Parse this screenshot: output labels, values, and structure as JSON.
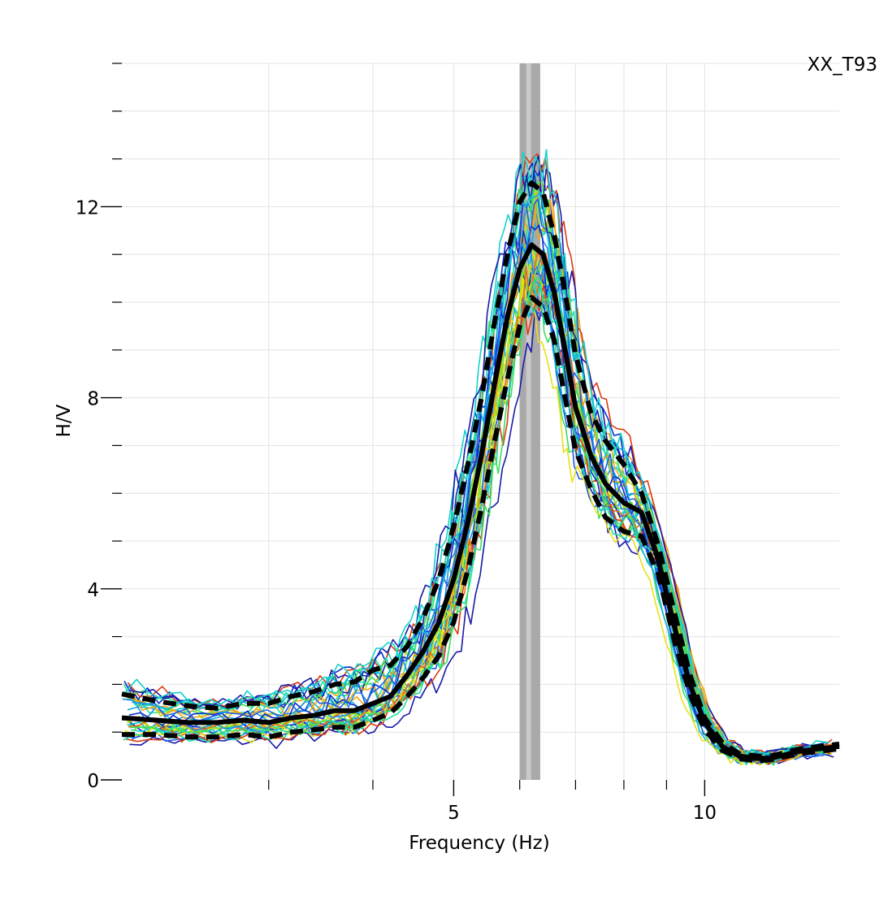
{
  "chart_data": {
    "type": "line",
    "station_label": "XX_T93",
    "xlabel": "Frequency (Hz)",
    "ylabel": "H/V",
    "x_scale": "log",
    "xlim": [
      2.0,
      14.5
    ],
    "ylim": [
      0,
      15
    ],
    "x_ticks_labeled": [
      5,
      10
    ],
    "x_ticks_labels": [
      "5",
      "10"
    ],
    "x_ticks_minor": [
      3,
      4,
      6,
      7,
      8,
      9
    ],
    "x_grid": [
      3,
      4,
      5,
      6,
      7,
      8,
      9,
      10
    ],
    "y_ticks_labeled": [
      0,
      4,
      8,
      12
    ],
    "y_ticks_labels": [
      "0",
      "4",
      "8",
      "12"
    ],
    "y_ticks_minor": [
      1,
      2,
      3,
      5,
      6,
      7,
      9,
      10,
      11,
      13,
      14,
      15
    ],
    "grid": true,
    "peak_band": {
      "f0_minus": 6.0,
      "f0_plus": 6.35,
      "f0": 6.15,
      "outer_color": "#a9a9a9",
      "inner_color": "#c9c9c9"
    },
    "x": [
      2.0,
      2.2,
      2.4,
      2.6,
      2.8,
      3.0,
      3.2,
      3.4,
      3.6,
      3.8,
      4.0,
      4.2,
      4.4,
      4.6,
      4.8,
      5.0,
      5.2,
      5.4,
      5.6,
      5.8,
      6.0,
      6.2,
      6.4,
      6.6,
      6.8,
      7.0,
      7.3,
      7.6,
      8.0,
      8.4,
      8.8,
      9.2,
      9.6,
      10.0,
      10.5,
      11.0,
      11.5,
      12.0,
      13.0,
      14.5
    ],
    "series": [
      {
        "style": "mean",
        "values": [
          1.3,
          1.25,
          1.2,
          1.2,
          1.25,
          1.2,
          1.3,
          1.35,
          1.45,
          1.45,
          1.6,
          1.75,
          2.2,
          2.7,
          3.3,
          4.2,
          5.4,
          6.8,
          8.3,
          9.7,
          10.7,
          11.2,
          11.0,
          10.2,
          9.0,
          7.8,
          6.8,
          6.2,
          5.8,
          5.6,
          4.6,
          3.2,
          2.0,
          1.2,
          0.7,
          0.5,
          0.45,
          0.45,
          0.6,
          0.7
        ]
      },
      {
        "style": "upper",
        "values": [
          1.8,
          1.65,
          1.55,
          1.5,
          1.6,
          1.6,
          1.75,
          1.85,
          2.0,
          2.05,
          2.3,
          2.4,
          2.8,
          3.4,
          4.2,
          5.3,
          6.6,
          8.0,
          9.6,
          11.0,
          12.1,
          12.5,
          12.3,
          11.4,
          10.2,
          8.9,
          7.7,
          7.1,
          6.6,
          6.0,
          4.9,
          3.5,
          2.2,
          1.3,
          0.78,
          0.55,
          0.5,
          0.5,
          0.65,
          0.75
        ]
      },
      {
        "style": "lower",
        "values": [
          0.95,
          0.95,
          0.9,
          0.9,
          0.95,
          0.9,
          1.0,
          1.05,
          1.1,
          1.1,
          1.25,
          1.4,
          1.75,
          2.15,
          2.6,
          3.3,
          4.4,
          5.7,
          7.1,
          8.4,
          9.5,
          10.1,
          9.9,
          9.2,
          8.0,
          6.9,
          6.1,
          5.5,
          5.2,
          5.1,
          4.3,
          2.9,
          1.8,
          1.05,
          0.62,
          0.45,
          0.4,
          0.42,
          0.55,
          0.65
        ]
      }
    ],
    "window_curve_colors": [
      "#1a1aa8",
      "#0b2ccf",
      "#1f5fe6",
      "#1b8ce8",
      "#10b2e0",
      "#14d2cc",
      "#1ee0a3",
      "#38e062",
      "#78e02a",
      "#b6e01c",
      "#e8e017",
      "#f0a616",
      "#ef6a16",
      "#dd3b12"
    ],
    "window_curve_count": 36
  }
}
